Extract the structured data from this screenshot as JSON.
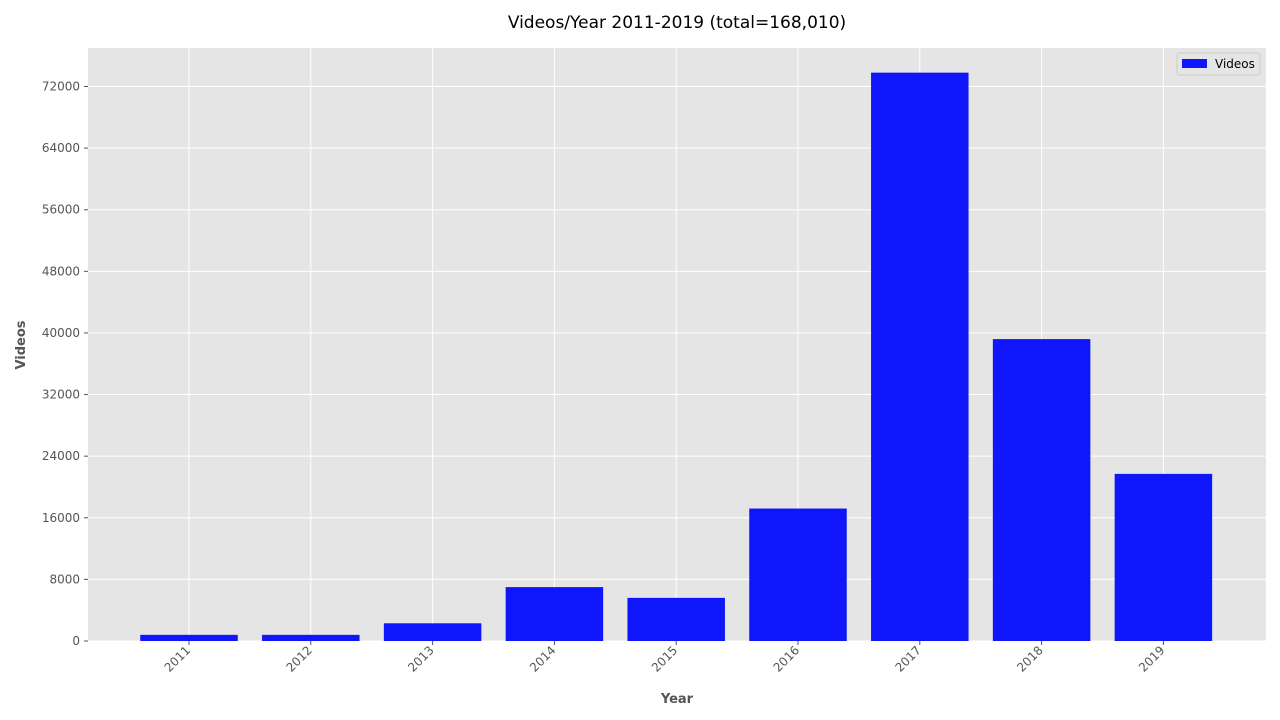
{
  "chart_data": {
    "type": "bar",
    "title": "Videos/Year 2011-2019 (total=168,010)",
    "xlabel": "Year",
    "ylabel": "Videos",
    "categories": [
      "2011",
      "2012",
      "2013",
      "2014",
      "2015",
      "2016",
      "2017",
      "2018",
      "2019"
    ],
    "series": [
      {
        "name": "Videos",
        "color": "#0f17fa",
        "values": [
          800,
          800,
          2300,
          7000,
          5600,
          17200,
          73800,
          39200,
          21700
        ]
      }
    ],
    "ylim": [
      0,
      77000
    ],
    "yticks": [
      0,
      8000,
      16000,
      24000,
      32000,
      40000,
      48000,
      56000,
      64000,
      72000
    ],
    "grid": true,
    "legend_position": "upper-right",
    "plot_background": "#e5e5e5",
    "grid_color": "#ffffff"
  }
}
